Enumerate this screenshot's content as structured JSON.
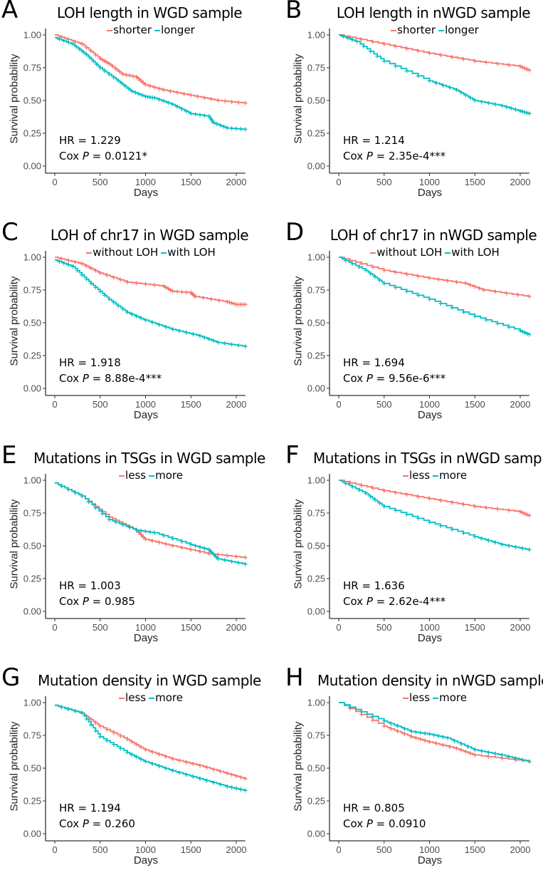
{
  "colors": {
    "group1": "#F8766D",
    "group2": "#00BFC4"
  },
  "chart_data": [
    {
      "panel": "A",
      "type": "line",
      "title": "LOH length in WGD sample",
      "xlabel": "Days",
      "ylabel": "Survival probability",
      "xlim": [
        0,
        2100
      ],
      "ylim": [
        0,
        1
      ],
      "xticks": [
        "0",
        "500",
        "1000",
        "1500",
        "2000"
      ],
      "yticks": [
        "0.00",
        "0.25",
        "0.50",
        "0.75",
        "1.00"
      ],
      "legend": [
        "shorter",
        "longer"
      ],
      "hr": "HR = 1.229",
      "cox_prefix": "Cox ",
      "p_symbol": "P",
      "cox_value": " = 0.0121*",
      "series": [
        {
          "name": "shorter",
          "x": [
            0,
            300,
            500,
            600,
            750,
            900,
            1000,
            1200,
            1500,
            1800,
            2100
          ],
          "y": [
            1.0,
            0.93,
            0.82,
            0.78,
            0.7,
            0.68,
            0.62,
            0.58,
            0.54,
            0.5,
            0.48
          ]
        },
        {
          "name": "longer",
          "x": [
            0,
            200,
            350,
            500,
            700,
            850,
            1000,
            1100,
            1300,
            1500,
            1700,
            1750,
            1900,
            2100
          ],
          "y": [
            0.98,
            0.93,
            0.85,
            0.75,
            0.65,
            0.57,
            0.53,
            0.52,
            0.47,
            0.4,
            0.38,
            0.33,
            0.29,
            0.28
          ]
        }
      ]
    },
    {
      "panel": "B",
      "type": "line",
      "title": "LOH length in nWGD sample",
      "xlabel": "Days",
      "ylabel": "Survival probability",
      "xlim": [
        0,
        2100
      ],
      "ylim": [
        0,
        1
      ],
      "xticks": [
        "0",
        "500",
        "1000",
        "1500",
        "2000"
      ],
      "yticks": [
        "0.00",
        "0.25",
        "0.50",
        "0.75",
        "1.00"
      ],
      "legend": [
        "shorter",
        "longer"
      ],
      "hr": "HR = 1.214",
      "cox_prefix": "Cox ",
      "p_symbol": "P",
      "cox_value": " = 2.35e-4***",
      "series": [
        {
          "name": "shorter",
          "x": [
            0,
            500,
            1000,
            1500,
            2000,
            2100
          ],
          "y": [
            1.0,
            0.93,
            0.86,
            0.8,
            0.76,
            0.73
          ]
        },
        {
          "name": "longer",
          "x": [
            0,
            200,
            500,
            1000,
            1300,
            1500,
            1800,
            2000,
            2100
          ],
          "y": [
            1.0,
            0.95,
            0.8,
            0.65,
            0.58,
            0.5,
            0.46,
            0.42,
            0.4
          ]
        }
      ]
    },
    {
      "panel": "C",
      "type": "line",
      "title": "LOH of chr17 in WGD sample",
      "xlabel": "Days",
      "ylabel": "Survival probability",
      "xlim": [
        0,
        2100
      ],
      "ylim": [
        0,
        1
      ],
      "xticks": [
        "0",
        "500",
        "1000",
        "1500",
        "2000"
      ],
      "yticks": [
        "0.00",
        "0.25",
        "0.50",
        "0.75",
        "1.00"
      ],
      "legend": [
        "without LOH",
        "with LOH"
      ],
      "hr": "HR = 1.918",
      "cox_prefix": "Cox ",
      "p_symbol": "P",
      "cox_value": " = 8.88e-4***",
      "series": [
        {
          "name": "without LOH",
          "x": [
            0,
            300,
            500,
            800,
            1200,
            1300,
            1500,
            1550,
            1900,
            2000,
            2100
          ],
          "y": [
            1.0,
            0.95,
            0.88,
            0.81,
            0.78,
            0.74,
            0.73,
            0.7,
            0.66,
            0.64,
            0.64
          ]
        },
        {
          "name": "with LOH",
          "x": [
            0,
            200,
            400,
            600,
            800,
            1000,
            1300,
            1600,
            1800,
            2100
          ],
          "y": [
            0.98,
            0.93,
            0.8,
            0.68,
            0.58,
            0.52,
            0.45,
            0.4,
            0.35,
            0.32
          ]
        }
      ]
    },
    {
      "panel": "D",
      "type": "line",
      "title": "LOH of chr17 in nWGD sample",
      "xlabel": "Days",
      "ylabel": "Survival probability",
      "xlim": [
        0,
        2100
      ],
      "ylim": [
        0,
        1
      ],
      "xticks": [
        "0",
        "500",
        "1000",
        "1500",
        "2000"
      ],
      "yticks": [
        "0.00",
        "0.25",
        "0.50",
        "0.75",
        "1.00"
      ],
      "legend": [
        "without LOH",
        "with LOH"
      ],
      "hr": "HR = 1.694",
      "cox_prefix": "Cox ",
      "p_symbol": "P",
      "cox_value": " = 9.56e-6***",
      "series": [
        {
          "name": "without LOH",
          "x": [
            0,
            500,
            1000,
            1400,
            1600,
            2100
          ],
          "y": [
            1.0,
            0.9,
            0.84,
            0.8,
            0.75,
            0.7
          ]
        },
        {
          "name": "with LOH",
          "x": [
            0,
            300,
            500,
            1000,
            1500,
            2000,
            2100
          ],
          "y": [
            1.0,
            0.9,
            0.8,
            0.68,
            0.55,
            0.44,
            0.41
          ]
        }
      ]
    },
    {
      "panel": "E",
      "type": "line",
      "title": "Mutations in TSGs in WGD sample",
      "xlabel": "Days",
      "ylabel": "Survival probability",
      "xlim": [
        0,
        2100
      ],
      "ylim": [
        0,
        1
      ],
      "xticks": [
        "0",
        "500",
        "1000",
        "1500",
        "2000"
      ],
      "yticks": [
        "0.00",
        "0.25",
        "0.50",
        "0.75",
        "1.00"
      ],
      "legend": [
        "less",
        "more"
      ],
      "hr": "HR = 1.003",
      "cox_prefix": "Cox ",
      "p_symbol": "P",
      "cox_value": " = 0.985",
      "series": [
        {
          "name": "less",
          "x": [
            0,
            300,
            600,
            900,
            1000,
            1300,
            1700,
            2100
          ],
          "y": [
            0.98,
            0.88,
            0.72,
            0.62,
            0.55,
            0.5,
            0.44,
            0.41
          ]
        },
        {
          "name": "more",
          "x": [
            0,
            300,
            600,
            900,
            1100,
            1500,
            1700,
            1800,
            2100
          ],
          "y": [
            0.98,
            0.88,
            0.7,
            0.62,
            0.6,
            0.51,
            0.47,
            0.4,
            0.36
          ]
        }
      ]
    },
    {
      "panel": "F",
      "type": "line",
      "title": "Mutations in TSGs in nWGD sample",
      "xlabel": "Days",
      "ylabel": "Survival probability",
      "xlim": [
        0,
        2100
      ],
      "ylim": [
        0,
        1
      ],
      "xticks": [
        "0",
        "500",
        "1000",
        "1500",
        "2000"
      ],
      "yticks": [
        "0.00",
        "0.25",
        "0.50",
        "0.75",
        "1.00"
      ],
      "legend": [
        "less",
        "more"
      ],
      "hr": "HR = 1.636",
      "cox_prefix": "Cox ",
      "p_symbol": "P",
      "cox_value": " = 2.62e-4***",
      "series": [
        {
          "name": "less",
          "x": [
            0,
            500,
            1000,
            1500,
            2000,
            2100
          ],
          "y": [
            1.0,
            0.92,
            0.86,
            0.8,
            0.76,
            0.73
          ]
        },
        {
          "name": "more",
          "x": [
            0,
            300,
            500,
            1000,
            1500,
            1800,
            2100
          ],
          "y": [
            1.0,
            0.9,
            0.8,
            0.68,
            0.57,
            0.51,
            0.47
          ]
        }
      ]
    },
    {
      "panel": "G",
      "type": "line",
      "title": "Mutation density in WGD sample",
      "xlabel": "Days",
      "ylabel": "Survival probability",
      "xlim": [
        0,
        2100
      ],
      "ylim": [
        0,
        1
      ],
      "xticks": [
        "0",
        "500",
        "1000",
        "1500",
        "2000"
      ],
      "yticks": [
        "0.00",
        "0.25",
        "0.50",
        "0.75",
        "1.00"
      ],
      "legend": [
        "less",
        "more"
      ],
      "hr": "HR = 1.194",
      "cox_prefix": "Cox ",
      "p_symbol": "P",
      "cox_value": " = 0.260",
      "series": [
        {
          "name": "less",
          "x": [
            0,
            300,
            500,
            800,
            1000,
            1300,
            1600,
            1900,
            2100
          ],
          "y": [
            0.98,
            0.92,
            0.82,
            0.72,
            0.64,
            0.57,
            0.52,
            0.46,
            0.42
          ]
        },
        {
          "name": "more",
          "x": [
            0,
            300,
            500,
            800,
            1000,
            1300,
            1600,
            1900,
            2100
          ],
          "y": [
            0.98,
            0.92,
            0.74,
            0.62,
            0.55,
            0.48,
            0.42,
            0.36,
            0.33
          ]
        }
      ]
    },
    {
      "panel": "H",
      "type": "line",
      "title": "Mutation density in nWGD sample",
      "xlabel": "Days",
      "ylabel": "Survival probability",
      "xlim": [
        0,
        2100
      ],
      "ylim": [
        0,
        1
      ],
      "xticks": [
        "0",
        "500",
        "1000",
        "1500",
        "2000"
      ],
      "yticks": [
        "0.00",
        "0.25",
        "0.50",
        "0.75",
        "1.00"
      ],
      "legend": [
        "less",
        "more"
      ],
      "hr": "HR = 0.805",
      "cox_prefix": "Cox ",
      "p_symbol": "P",
      "cox_value": " = 0.0910",
      "series": [
        {
          "name": "less",
          "x": [
            0,
            500,
            800,
            1000,
            1300,
            1500,
            2100
          ],
          "y": [
            1.0,
            0.82,
            0.74,
            0.7,
            0.65,
            0.6,
            0.55
          ]
        },
        {
          "name": "more",
          "x": [
            0,
            500,
            800,
            1000,
            1200,
            1500,
            1800,
            2100
          ],
          "y": [
            1.0,
            0.86,
            0.78,
            0.76,
            0.73,
            0.64,
            0.6,
            0.55
          ]
        }
      ]
    }
  ]
}
